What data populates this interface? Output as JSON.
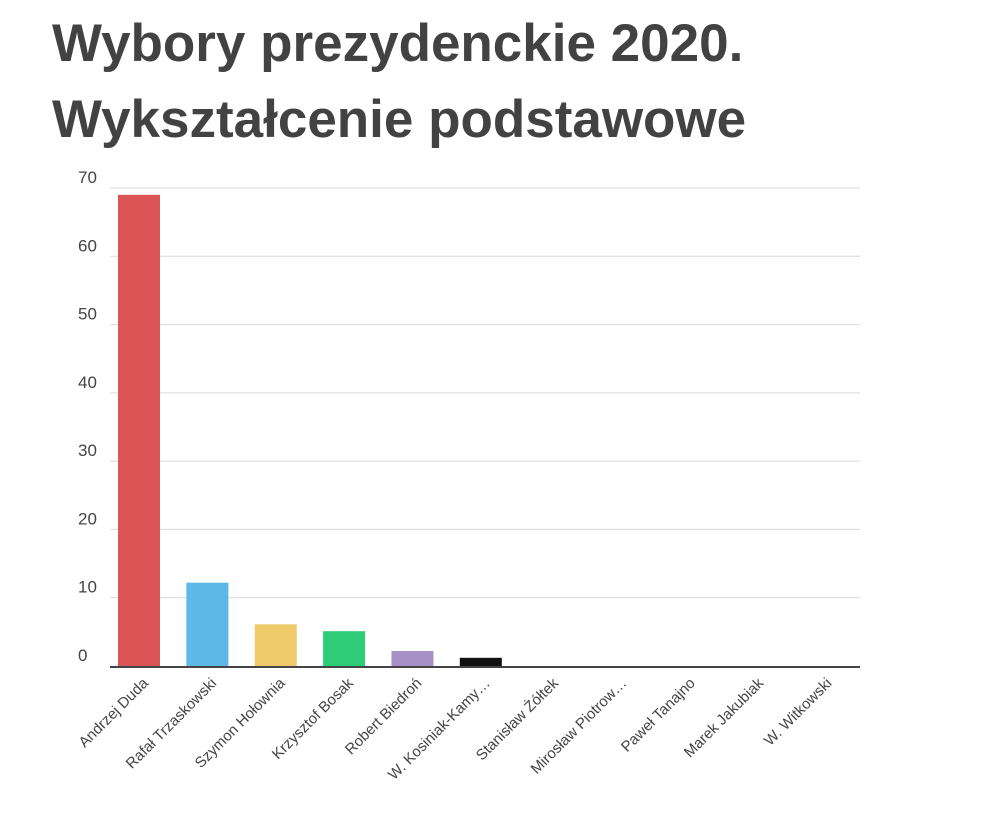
{
  "title_line1": "Wybory prezydenckie 2020.",
  "title_line2": "Wykształcenie podstawowe",
  "chart_data": {
    "type": "bar",
    "categories": [
      "Andrzej Duda",
      "Rafał Trzaskowski",
      "Szymon Hołownia",
      "Krzysztof Bosak",
      "Robert Biedroń",
      "W. Kosiniak-Kamy…",
      "Stanisław Żółtek",
      "Mirosław Piotrow…",
      "Paweł Tanajno",
      "Marek Jakubiak",
      "W. Witkowski"
    ],
    "values": [
      69,
      12.2,
      6.1,
      5.1,
      2.2,
      1.2,
      0,
      0,
      0,
      0,
      0
    ],
    "colors": [
      "#dc5456",
      "#5eb8e7",
      "#efca6b",
      "#2ecc77",
      "#a690c5",
      "#111111",
      "#dc5456",
      "#5eb8e7",
      "#efca6b",
      "#2ecc77",
      "#a690c5"
    ],
    "yticks": [
      0,
      10,
      20,
      30,
      40,
      50,
      60,
      70
    ],
    "ylim": [
      0,
      70
    ],
    "xlabel": "",
    "ylabel": "",
    "grid": true,
    "legend": "none"
  }
}
